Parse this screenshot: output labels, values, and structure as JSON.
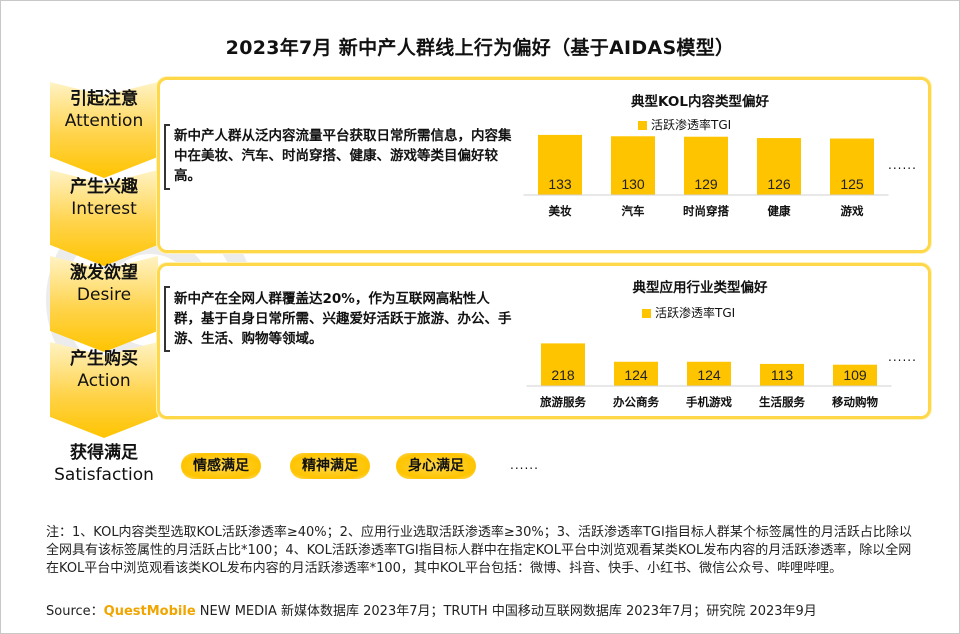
{
  "title": "2023年7月 新中产人群线上行为偏好（基于AIDAS模型）",
  "watermark": "QUESTMOBILE",
  "stages": [
    {
      "cn": "引起注意",
      "en": "Attention"
    },
    {
      "cn": "产生兴趣",
      "en": "Interest"
    },
    {
      "cn": "激发欲望",
      "en": "Desire"
    },
    {
      "cn": "产生购买",
      "en": "Action"
    },
    {
      "cn": "获得满足",
      "en": "Satisfaction"
    }
  ],
  "cards": [
    {
      "desc": "新中产人群从泛内容流量平台获取日常所需信息，内容集中在美妆、汽车、时尚穿搭、健康、游戏等类目偏好较高。",
      "ellipsis": "......"
    },
    {
      "desc": "新中产在全网人群覆盖达20%，作为互联网高粘性人群，基于自身日常所需、兴趣爱好活跃于旅游、办公、手游、生活、购物等领域。",
      "ellipsis": "......"
    }
  ],
  "satisfaction": {
    "pills": [
      "情感满足",
      "精神满足",
      "身心满足"
    ],
    "ellipsis": "......"
  },
  "chart_data": [
    {
      "type": "bar",
      "title": "典型KOL内容类型偏好",
      "categories": [
        "美妆",
        "汽车",
        "时尚穿搭",
        "健康",
        "游戏"
      ],
      "series": [
        {
          "name": "活跃渗透率TGI",
          "values": [
            133,
            130,
            129,
            126,
            125
          ]
        }
      ],
      "ylim": [
        0,
        135
      ],
      "grid": false,
      "legend": "top",
      "color": "#ffc400"
    },
    {
      "type": "bar",
      "title": "典型应用行业类型偏好",
      "categories": [
        "旅游服务",
        "办公商务",
        "手机游戏",
        "生活服务",
        "移动购物"
      ],
      "series": [
        {
          "name": "活跃渗透率TGI",
          "values": [
            218,
            124,
            124,
            113,
            109
          ]
        }
      ],
      "ylim": [
        0,
        220
      ],
      "grid": false,
      "legend": "top",
      "color": "#ffc400"
    }
  ],
  "note": "注：1、KOL内容类型选取KOL活跃渗透率≥40%；2、应用行业选取活跃渗透率≥30%；3、活跃渗透率TGI指目标人群某个标签属性的月活跃占比除以全网具有该标签属性的月活跃占比*100；4、KOL活跃渗透率TGI指目标人群中在指定KOL平台中浏览观看某类KOL发布内容的月活跃渗透率，除以全网在KOL平台中浏览观看该类KOL发布内容的月活跃渗透率*100，其中KOL平台包括：微博、抖音、快手、小红书、微信公众号、哔哩哔哩。",
  "source": {
    "prefix": "Source：",
    "brand": "QuestMobile",
    "text": " NEW MEDIA 新媒体数据库 2023年7月；TRUTH 中国移动互联网数据库 2023年7月；研究院 2023年9月"
  }
}
